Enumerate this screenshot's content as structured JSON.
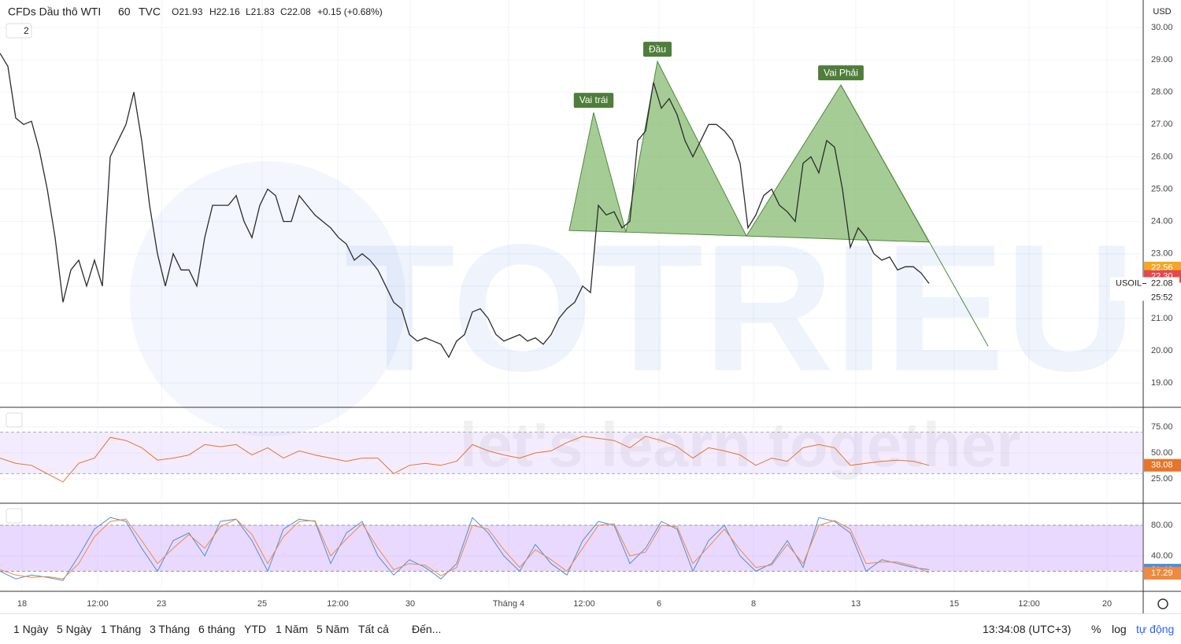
{
  "chart_data": {
    "type": "line",
    "title": "CFDs Dầu thô WTI",
    "interval": 60,
    "source": "TVC",
    "ohlc": [
      "O21.93",
      "H22.16",
      "L21.83",
      "C22.08"
    ],
    "change": "+0.15 (+0.68%)",
    "currency": "USD",
    "indicator_count": 2,
    "color": "#2b2b2b",
    "values": [
      29.2,
      28.8,
      27.2,
      27.0,
      27.1,
      26.2,
      25.0,
      23.5,
      21.5,
      22.5,
      22.8,
      22.0,
      22.8,
      22.0,
      26.0,
      26.5,
      27.0,
      28.0,
      26.5,
      24.5,
      23.0,
      22.0,
      23.0,
      22.5,
      22.5,
      22.0,
      23.5,
      24.5,
      24.5,
      24.5,
      24.8,
      24.0,
      23.5,
      24.5,
      25.0,
      24.8,
      24.0,
      24.0,
      24.8,
      24.5,
      24.2,
      24.0,
      23.8,
      23.5,
      23.3,
      22.8,
      23.0,
      22.8,
      22.5,
      22.0,
      21.5,
      21.3,
      20.5,
      20.3,
      20.4,
      20.3,
      20.2,
      19.8,
      20.3,
      20.5,
      21.2,
      21.3,
      21.0,
      20.5,
      20.3,
      20.4,
      20.5,
      20.3,
      20.4,
      20.2,
      20.5,
      21.0,
      21.3,
      21.5,
      22.0,
      21.8,
      24.5,
      24.2,
      24.3,
      23.8,
      24.0,
      26.5,
      26.8,
      28.3,
      27.5,
      27.8,
      27.3,
      26.5,
      26.0,
      26.5,
      27.0,
      27.0,
      26.8,
      26.5,
      25.8,
      23.8,
      24.2,
      24.8,
      25.0,
      24.5,
      24.3,
      24.0,
      25.8,
      26.0,
      25.5,
      26.5,
      26.3,
      25.0,
      23.2,
      23.8,
      23.5,
      23.0,
      22.8,
      22.9,
      22.5,
      22.6,
      22.6,
      22.4,
      22.08
    ],
    "xlim": [
      0,
      145.2
    ],
    "xticks": [
      {
        "value": 2.8,
        "label": "18"
      },
      {
        "value": 12.4,
        "label": "12:00"
      },
      {
        "value": 20.5,
        "label": "23"
      },
      {
        "value": 33.3,
        "label": "25"
      },
      {
        "value": 42.9,
        "label": "12:00"
      },
      {
        "value": 52.1,
        "label": "30"
      },
      {
        "value": 64.6,
        "label": "Tháng 4"
      },
      {
        "value": 74.2,
        "label": "12:00"
      },
      {
        "value": 83.7,
        "label": "6"
      },
      {
        "value": 95.7,
        "label": "8"
      },
      {
        "value": 108.7,
        "label": "13"
      },
      {
        "value": 121.2,
        "label": "15"
      },
      {
        "value": 130.7,
        "label": "12:00"
      },
      {
        "value": 140.6,
        "label": "20"
      }
    ],
    "ylim": [
      18.25,
      30.85
    ],
    "yticks": [
      {
        "value": 19,
        "label": "19.00"
      },
      {
        "value": 20,
        "label": "20.00"
      },
      {
        "value": 21,
        "label": "21.00"
      },
      {
        "value": 22,
        "label": "22.00"
      },
      {
        "value": 23,
        "label": "23.00"
      },
      {
        "value": 24,
        "label": "24.00"
      },
      {
        "value": 25,
        "label": "25.00"
      },
      {
        "value": 26,
        "label": "26.00"
      },
      {
        "value": 27,
        "label": "27.00"
      },
      {
        "value": 28,
        "label": "28.00"
      },
      {
        "value": 29,
        "label": "29.00"
      },
      {
        "value": 30,
        "label": "30.00"
      }
    ],
    "grid": true,
    "patterns": [
      {
        "label": "Vai trái",
        "color": "#6aaa50",
        "x": [
          72.3,
          75.4,
          79.5
        ],
        "y": [
          23.72,
          27.37,
          23.67
        ]
      },
      {
        "label": "Đầu",
        "color": "#6aaa50",
        "x": [
          79.5,
          83.5,
          94.8
        ],
        "y": [
          23.67,
          28.95,
          23.55
        ]
      },
      {
        "label": "Vai Phải",
        "color": "#6aaa50",
        "x": [
          94.8,
          106.8,
          118.0
        ],
        "y": [
          23.55,
          28.22,
          23.36
        ]
      }
    ],
    "projection": {
      "x": [
        106.8,
        125.5
      ],
      "y": [
        28.22,
        20.14
      ]
    },
    "price_tags": [
      {
        "value": 22.56,
        "label": "22.56",
        "color": "#f5a623"
      },
      {
        "value": 22.3,
        "label": "22.30",
        "color": "#e5484d"
      }
    ],
    "last": {
      "symbol": "USOIL",
      "value": 22.08,
      "countdown": "25:52"
    },
    "watermark": {
      "title": "TOTRIEU",
      "tagline": "let's learn together"
    },
    "rsi": {
      "ylim": [
        1.5,
        93.2
      ],
      "yticks": [
        {
          "value": 25,
          "label": "25.00"
        },
        {
          "value": 50,
          "label": "50.00"
        },
        {
          "value": 75,
          "label": "75.00"
        }
      ],
      "band": [
        30,
        70
      ],
      "color": "#e8742a",
      "tag": 38.08,
      "values": [
        45,
        40,
        38,
        30,
        22,
        40,
        45,
        65,
        62,
        55,
        43,
        45,
        48,
        58,
        56,
        58,
        48,
        55,
        45,
        52,
        48,
        45,
        42,
        45,
        45,
        30,
        38,
        40,
        38,
        42,
        58,
        52,
        48,
        45,
        50,
        52,
        60,
        66,
        64,
        62,
        55,
        66,
        62,
        56,
        45,
        55,
        52,
        48,
        38,
        45,
        42,
        55,
        58,
        55,
        38,
        40,
        42,
        43,
        42,
        38
      ]
    },
    "stoch": {
      "ylim": [
        -6.2,
        107.7
      ],
      "yticks": [
        {
          "value": 40,
          "label": "40.00"
        },
        {
          "value": 80,
          "label": "80.00"
        }
      ],
      "band": [
        20,
        80
      ],
      "series": [
        {
          "color": "#4a90e2",
          "tag": 21.46,
          "values": [
            20,
            10,
            15,
            12,
            8,
            40,
            75,
            90,
            85,
            50,
            20,
            60,
            70,
            40,
            85,
            88,
            60,
            20,
            75,
            88,
            85,
            30,
            70,
            85,
            40,
            15,
            35,
            25,
            10,
            30,
            90,
            70,
            40,
            20,
            55,
            30,
            15,
            60,
            85,
            80,
            30,
            50,
            85,
            75,
            20,
            60,
            80,
            40,
            20,
            30,
            60,
            25,
            90,
            85,
            70,
            20,
            35,
            30,
            25,
            22
          ]
        },
        {
          "color": "#f08a3e",
          "tag": 17.29,
          "values": [
            22,
            15,
            12,
            13,
            10,
            30,
            65,
            85,
            88,
            60,
            30,
            50,
            68,
            50,
            78,
            88,
            68,
            30,
            65,
            85,
            86,
            40,
            62,
            82,
            50,
            22,
            30,
            28,
            14,
            25,
            80,
            75,
            48,
            25,
            48,
            35,
            20,
            50,
            80,
            82,
            40,
            45,
            80,
            78,
            30,
            52,
            75,
            48,
            25,
            28,
            55,
            30,
            80,
            86,
            75,
            30,
            32,
            32,
            27,
            18
          ]
        }
      ]
    },
    "ranges": [
      "1 Ngày",
      "5 Ngày",
      "1 Tháng",
      "3 Tháng",
      "6 tháng",
      "YTD",
      "1 Năm",
      "5 Năm",
      "Tất cả",
      "Đến..."
    ],
    "clock": "13:34:08 (UTC+3)",
    "scale_options": [
      "%",
      "log",
      "tự động"
    ]
  }
}
